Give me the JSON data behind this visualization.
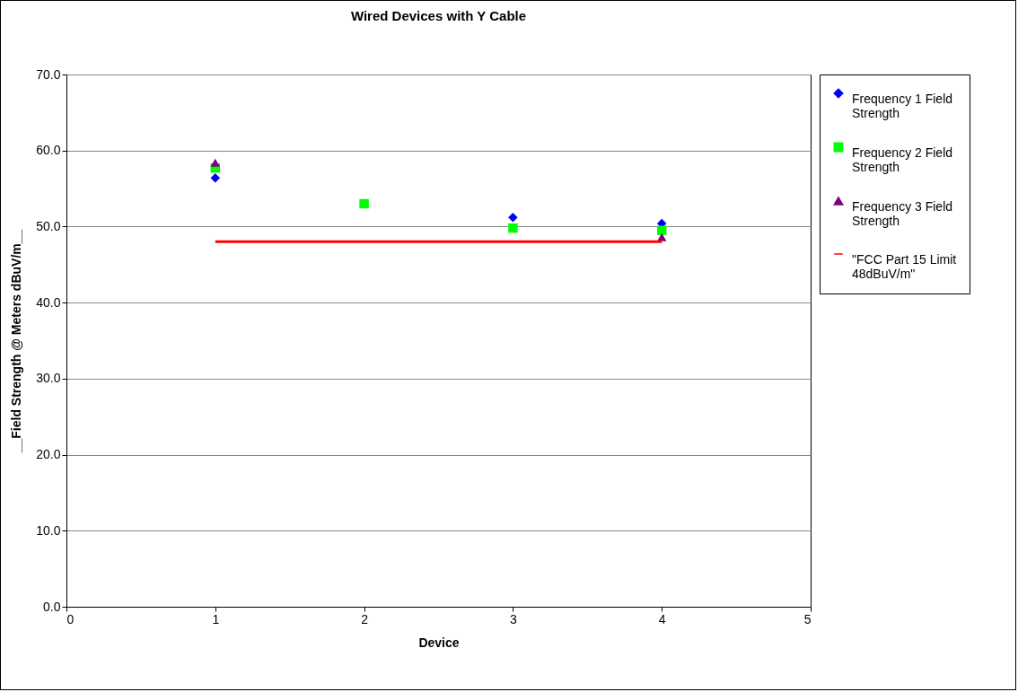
{
  "chart_data": {
    "type": "scatter",
    "title": "Wired Devices with Y Cable",
    "xlabel": "Device",
    "ylabel": "__Field Strength @ Meters dBuV/m__",
    "x": [
      1,
      2,
      3,
      4
    ],
    "series": [
      {
        "name": "Frequency 1 Field Strength",
        "color": "#0000ff",
        "marker": "diamond",
        "values": [
          56.4,
          null,
          51.2,
          50.4
        ]
      },
      {
        "name": "Frequency 2 Field Strength",
        "color": "#00ff00",
        "marker": "square",
        "values": [
          57.7,
          53.0,
          49.8,
          49.5
        ]
      },
      {
        "name": "Frequency 3 Field Strength",
        "color": "#800080",
        "marker": "triangle",
        "values": [
          58.4,
          null,
          null,
          48.6
        ]
      },
      {
        "name": "\"FCC Part 15 Limit 48dBuV/m\"",
        "type": "line",
        "color": "#ff0000",
        "marker": "none",
        "line_style": "solid",
        "values": [
          48,
          48,
          48,
          48
        ]
      }
    ],
    "xlim": [
      0,
      5
    ],
    "xticks": [
      0,
      1,
      2,
      3,
      4,
      5
    ],
    "ylim": [
      0,
      70
    ],
    "yticks": [
      {
        "value": 0,
        "label": "0.0"
      },
      {
        "value": 10,
        "label": "10.0"
      },
      {
        "value": 20,
        "label": "20.0"
      },
      {
        "value": 30,
        "label": "30.0"
      },
      {
        "value": 40,
        "label": "40.0"
      },
      {
        "value": 50,
        "label": "50.0"
      },
      {
        "value": 60,
        "label": "60.0"
      },
      {
        "value": 70,
        "label": "70.0"
      }
    ],
    "grid": "y",
    "legend": "right"
  }
}
